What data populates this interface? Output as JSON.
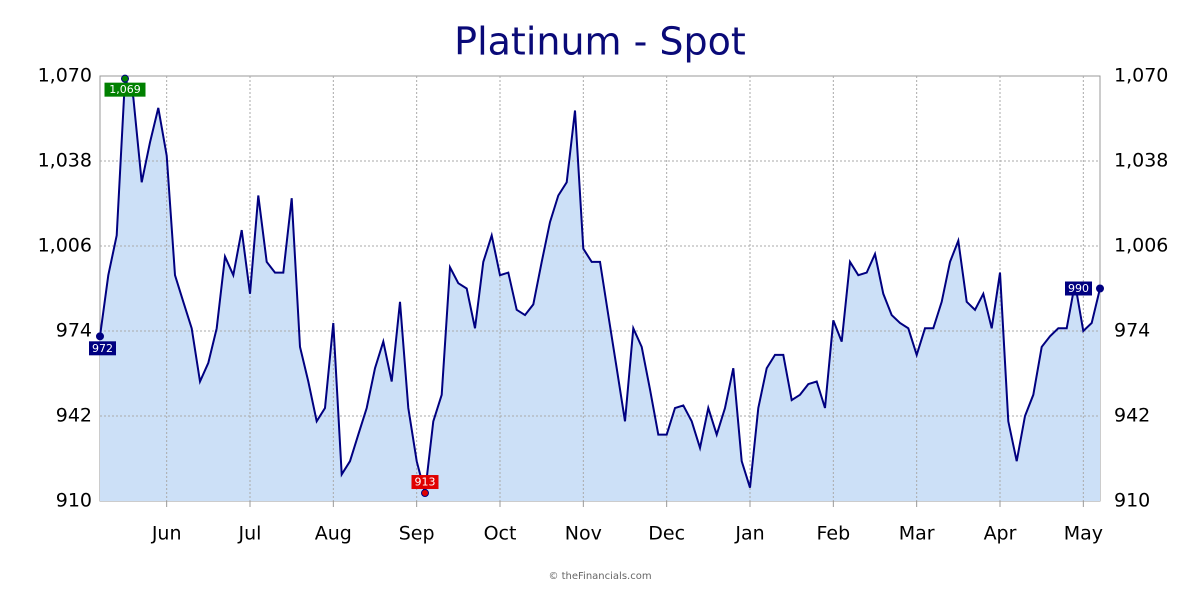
{
  "chart_data": {
    "type": "line",
    "title": "Platinum - Spot",
    "footer": "© theFinancials.com",
    "categories": [
      null,
      null,
      null,
      null,
      null,
      null,
      null,
      null,
      "Jun",
      null,
      null,
      null,
      null,
      null,
      null,
      null,
      null,
      null,
      "Jul",
      null,
      null,
      null,
      null,
      null,
      null,
      null,
      null,
      null,
      "Aug",
      null,
      null,
      null,
      null,
      null,
      null,
      null,
      null,
      null,
      "Sep",
      null,
      null,
      null,
      null,
      null,
      null,
      null,
      null,
      null,
      "Oct",
      null,
      null,
      null,
      null,
      null,
      null,
      null,
      null,
      null,
      "Nov",
      null,
      null,
      null,
      null,
      null,
      null,
      null,
      null,
      null,
      "Dec",
      null,
      null,
      null,
      null,
      null,
      null,
      null,
      null,
      null,
      "Jan",
      null,
      null,
      null,
      null,
      null,
      null,
      null,
      null,
      null,
      "Feb",
      null,
      null,
      null,
      null,
      null,
      null,
      null,
      null,
      null,
      "Mar",
      null,
      null,
      null,
      null,
      null,
      null,
      null,
      null,
      null,
      "Apr",
      null,
      null,
      null,
      null,
      null,
      null,
      null,
      null,
      null,
      "May",
      null,
      null
    ],
    "values": [
      972,
      995,
      1010,
      1069,
      1062,
      1030,
      1045,
      1058,
      1040,
      995,
      985,
      975,
      955,
      962,
      975,
      1002,
      995,
      1012,
      988,
      1025,
      1000,
      996,
      996,
      1024,
      968,
      955,
      940,
      945,
      977,
      920,
      925,
      935,
      945,
      960,
      970,
      955,
      985,
      945,
      925,
      913,
      940,
      950,
      998,
      992,
      990,
      975,
      1000,
      1010,
      995,
      996,
      982,
      980,
      984,
      1000,
      1015,
      1025,
      1030,
      1057,
      1005,
      1000,
      1000,
      980,
      960,
      940,
      975,
      968,
      952,
      935,
      935,
      945,
      946,
      940,
      930,
      945,
      935,
      945,
      960,
      925,
      915,
      945,
      960,
      965,
      965,
      948,
      950,
      954,
      955,
      945,
      978,
      970,
      1000,
      995,
      996,
      1003,
      988,
      980,
      977,
      975,
      965,
      975,
      975,
      985,
      1000,
      1008,
      985,
      982,
      988,
      975,
      996,
      940,
      925,
      942,
      950,
      968,
      972,
      975,
      975,
      992,
      974,
      977,
      990
    ],
    "value_labels": [
      "972",
      null,
      null,
      "1,069",
      null,
      null,
      null,
      null,
      null,
      null,
      null,
      null,
      null,
      null,
      null,
      null,
      null,
      null,
      null,
      null,
      null,
      null,
      null,
      null,
      null,
      null,
      null,
      null,
      null,
      null,
      null,
      null,
      null,
      null,
      null,
      null,
      null,
      null,
      null,
      "913",
      null,
      null,
      null,
      null,
      null,
      null,
      null,
      null,
      null,
      null,
      null,
      null,
      null,
      null,
      null,
      null,
      null,
      null,
      null,
      null,
      null,
      null,
      null,
      null,
      null,
      null,
      null,
      null,
      null,
      null,
      null,
      null,
      null,
      null,
      null,
      null,
      null,
      null,
      null,
      null,
      null,
      null,
      null,
      null,
      null,
      null,
      null,
      null,
      null,
      null,
      null,
      null,
      null,
      null,
      null,
      null,
      null,
      null,
      null,
      null,
      null,
      null,
      null,
      null,
      null,
      null,
      null,
      null,
      null,
      null,
      null,
      null,
      null,
      null,
      null,
      null,
      null,
      null,
      null,
      null,
      "990"
    ],
    "color": "#000080",
    "fill": "#cce0f7",
    "ylim": [
      910,
      1070
    ],
    "yticks": [
      910,
      942,
      974,
      {
        "value": 1006,
        "label": "1,006"
      },
      {
        "value": 1038,
        "label": "1,038"
      },
      {
        "value": 1070,
        "label": "1,070"
      }
    ],
    "grid": true
  }
}
